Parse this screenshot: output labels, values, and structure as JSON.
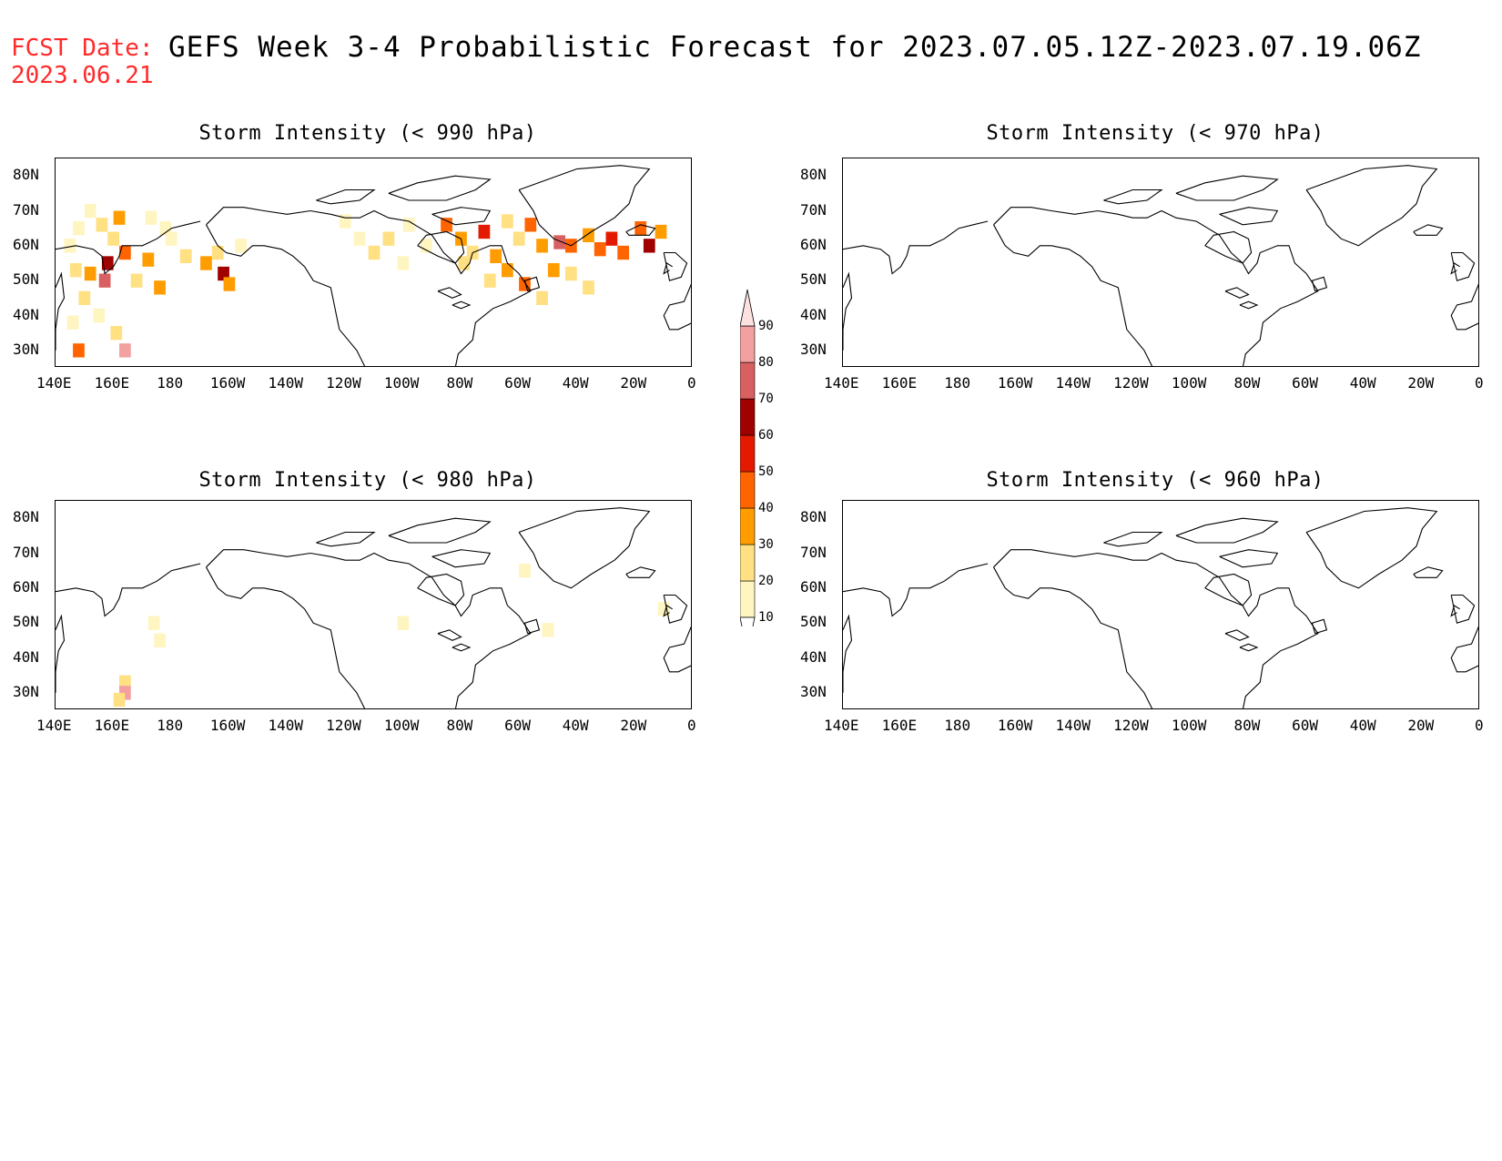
{
  "header": {
    "fcst_label": "FCST Date:",
    "fcst_date": "2023.06.21",
    "title": "GEFS Week 3-4 Probabilistic Forecast for 2023.07.05.12Z-2023.07.19.06Z"
  },
  "panels": [
    {
      "id": "p990",
      "title": "Storm Intensity (< 990 hPa)"
    },
    {
      "id": "p970",
      "title": "Storm Intensity (< 970 hPa)"
    },
    {
      "id": "p980",
      "title": "Storm Intensity (< 980 hPa)"
    },
    {
      "id": "p960",
      "title": "Storm Intensity (< 960 hPa)"
    }
  ],
  "axes": {
    "lon_labels": [
      "140E",
      "160E",
      "180",
      "160W",
      "140W",
      "120W",
      "100W",
      "80W",
      "60W",
      "40W",
      "20W",
      "0"
    ],
    "lat_labels": [
      "80N",
      "70N",
      "60N",
      "50N",
      "40N",
      "30N"
    ]
  },
  "colorbar": {
    "levels": [
      "10",
      "20",
      "30",
      "40",
      "50",
      "60",
      "70",
      "80",
      "90"
    ],
    "colors": [
      "#fff5c0",
      "#ffe082",
      "#ff9d00",
      "#ff6400",
      "#e41a00",
      "#a00000",
      "#d96060",
      "#f2a0a0",
      "#fde0e0"
    ]
  },
  "chart_data": {
    "type": "heatmap",
    "lon_range": [
      140,
      360
    ],
    "lat_range": [
      25,
      85
    ],
    "units": "%",
    "series": [
      {
        "panel": "p990",
        "cells": [
          [
            145,
            60,
            15
          ],
          [
            148,
            65,
            15
          ],
          [
            152,
            70,
            12
          ],
          [
            156,
            66,
            20
          ],
          [
            162,
            68,
            35
          ],
          [
            160,
            62,
            20
          ],
          [
            164,
            58,
            45
          ],
          [
            158,
            55,
            60
          ],
          [
            157,
            50,
            75
          ],
          [
            152,
            52,
            30
          ],
          [
            147,
            53,
            20
          ],
          [
            150,
            45,
            25
          ],
          [
            155,
            40,
            15
          ],
          [
            161,
            35,
            25
          ],
          [
            164,
            30,
            85
          ],
          [
            148,
            30,
            45
          ],
          [
            168,
            50,
            25
          ],
          [
            172,
            56,
            30
          ],
          [
            176,
            48,
            30
          ],
          [
            180,
            62,
            15
          ],
          [
            185,
            57,
            25
          ],
          [
            192,
            55,
            30
          ],
          [
            198,
            52,
            60
          ],
          [
            200,
            49,
            35
          ],
          [
            196,
            58,
            20
          ],
          [
            204,
            60,
            12
          ],
          [
            173,
            68,
            12
          ],
          [
            178,
            65,
            15
          ],
          [
            146,
            38,
            15
          ],
          [
            240,
            67,
            12
          ],
          [
            245,
            62,
            15
          ],
          [
            250,
            58,
            25
          ],
          [
            255,
            62,
            20
          ],
          [
            262,
            66,
            15
          ],
          [
            268,
            60,
            12
          ],
          [
            275,
            66,
            40
          ],
          [
            280,
            62,
            30
          ],
          [
            284,
            58,
            25
          ],
          [
            288,
            64,
            50
          ],
          [
            292,
            57,
            35
          ],
          [
            296,
            67,
            20
          ],
          [
            300,
            62,
            25
          ],
          [
            304,
            66,
            45
          ],
          [
            308,
            60,
            30
          ],
          [
            314,
            61,
            70
          ],
          [
            318,
            60,
            40
          ],
          [
            324,
            63,
            35
          ],
          [
            328,
            59,
            45
          ],
          [
            332,
            62,
            55
          ],
          [
            336,
            58,
            45
          ],
          [
            342,
            65,
            45
          ],
          [
            345,
            60,
            60
          ],
          [
            349,
            64,
            30
          ],
          [
            290,
            50,
            20
          ],
          [
            296,
            53,
            30
          ],
          [
            302,
            49,
            40
          ],
          [
            308,
            45,
            25
          ],
          [
            312,
            53,
            30
          ],
          [
            318,
            52,
            20
          ],
          [
            324,
            48,
            25
          ],
          [
            281,
            55,
            20
          ],
          [
            260,
            55,
            12
          ]
        ]
      },
      {
        "panel": "p980",
        "cells": [
          [
            164,
            33,
            20
          ],
          [
            164,
            30,
            85
          ],
          [
            162,
            28,
            20
          ],
          [
            176,
            45,
            12
          ],
          [
            174,
            50,
            10
          ],
          [
            260,
            50,
            10
          ],
          [
            302,
            65,
            10
          ],
          [
            310,
            48,
            10
          ],
          [
            350,
            54,
            10
          ]
        ]
      },
      {
        "panel": "p970",
        "cells": []
      },
      {
        "panel": "p960",
        "cells": []
      }
    ]
  }
}
